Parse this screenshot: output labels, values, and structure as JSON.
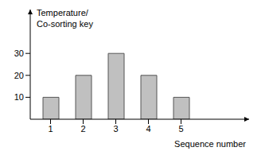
{
  "chart_data": {
    "type": "bar",
    "y_label": [
      "Temperature/",
      "Co-sorting key"
    ],
    "x_label": "Sequence number",
    "categories": [
      "1",
      "2",
      "3",
      "4",
      "5"
    ],
    "values": [
      10,
      20,
      30,
      20,
      10
    ],
    "color": "#c0c0c0",
    "ylim": [
      0,
      50
    ],
    "yticks": [
      10,
      20,
      30
    ],
    "grid": false
  }
}
